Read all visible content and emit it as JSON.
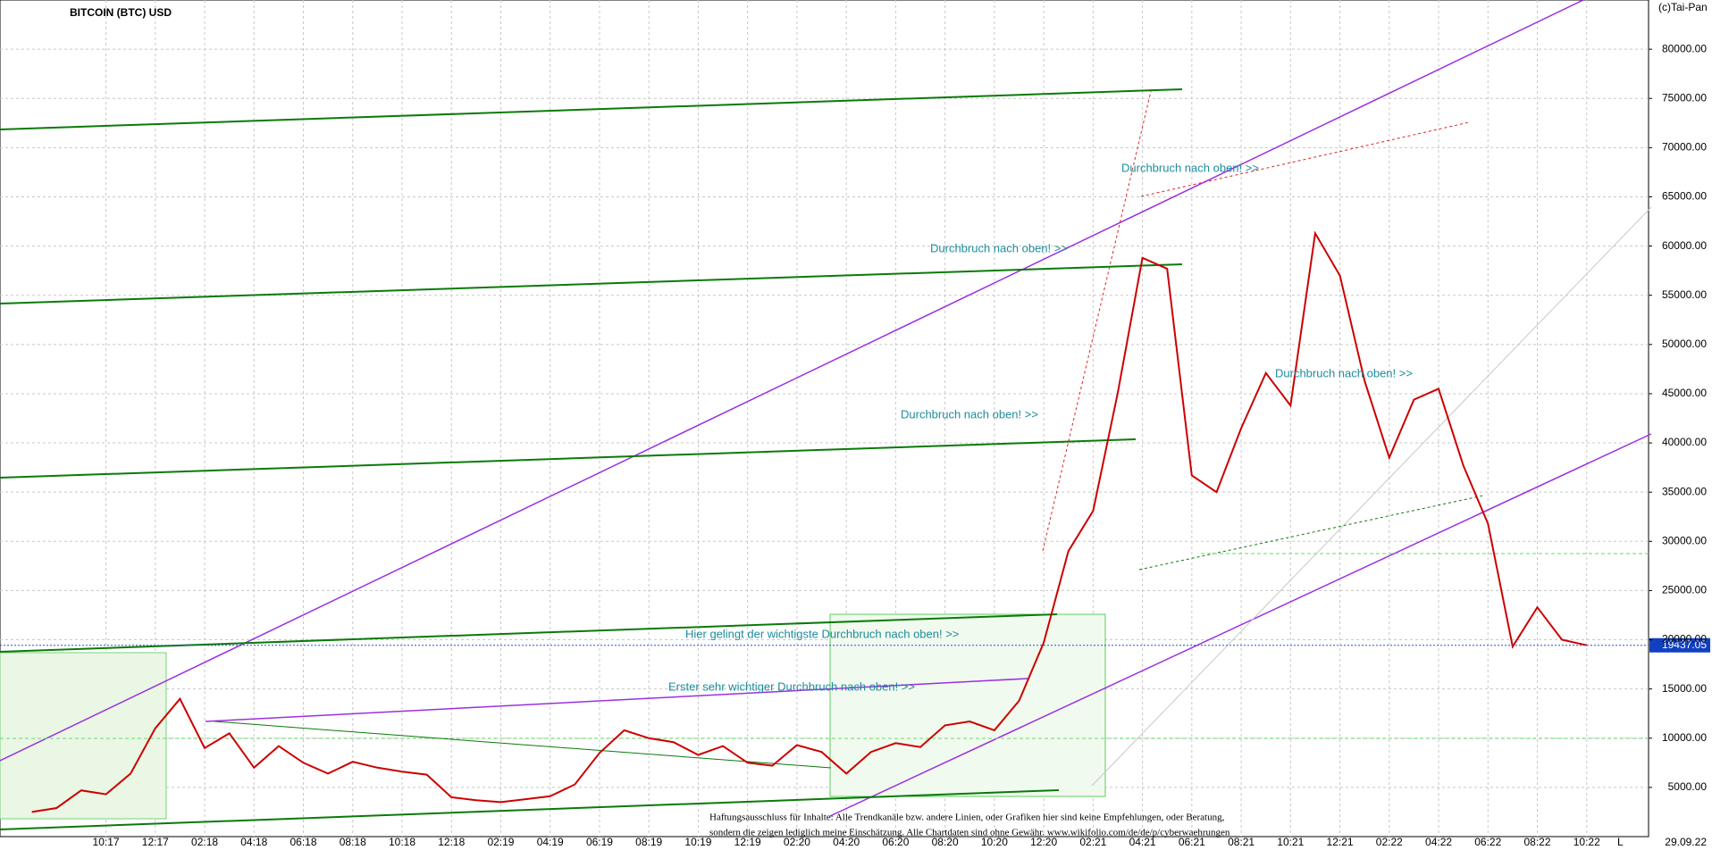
{
  "chart_data": {
    "type": "line",
    "title": "BITCOIN (BTC) USD",
    "copyright": "(c)Tai-Pan",
    "categories": [
      null,
      null,
      null,
      "10:17",
      null,
      "12:17",
      null,
      "02:18",
      null,
      "04:18",
      null,
      "06:18",
      null,
      "08:18",
      null,
      "10:18",
      null,
      "12:18",
      null,
      "02:19",
      null,
      "04:19",
      null,
      "06:19",
      null,
      "08:19",
      null,
      "10:19",
      null,
      "12:19",
      null,
      "02:20",
      null,
      "04:20",
      null,
      "06:20",
      null,
      "08:20",
      null,
      "10:20",
      null,
      "12:20",
      null,
      "02:21",
      null,
      "04:21",
      null,
      "06:21",
      null,
      "08:21",
      null,
      "10:21",
      null,
      "12:21",
      null,
      "02:22",
      null,
      "04:22",
      null,
      "06:22",
      null,
      "08:22",
      null,
      "10:22"
    ],
    "series": [
      {
        "name": "BITCOIN (BTC) USD",
        "color": "#cc0000",
        "values": [
          2500,
          2900,
          4700,
          4300,
          6400,
          11000,
          14000,
          9000,
          10500,
          7000,
          9200,
          7500,
          6400,
          7600,
          7000,
          6600,
          6300,
          4000,
          3700,
          3500,
          3800,
          4100,
          5300,
          8500,
          10800,
          10000,
          9600,
          8300,
          9200,
          7500,
          7200,
          9300,
          8600,
          6400,
          8600,
          9500,
          9100,
          11300,
          11700,
          10800,
          13800,
          19700,
          29000,
          33100,
          45100,
          58800,
          57700,
          36700,
          35000,
          41500,
          47100,
          43800,
          61300,
          57000,
          46300,
          38500,
          44400,
          45500,
          37700,
          31800,
          19300,
          23300,
          20000,
          19437.05
        ]
      }
    ],
    "ylim": [
      0,
      85000
    ],
    "yticks": [
      {
        "value": 5000,
        "label": "5000.00"
      },
      {
        "value": 10000,
        "label": "10000.00"
      },
      {
        "value": 15000,
        "label": "15000.00"
      },
      {
        "value": 20000,
        "label": "20000.00"
      },
      {
        "value": 25000,
        "label": "25000.00"
      },
      {
        "value": 30000,
        "label": "30000.00"
      },
      {
        "value": 35000,
        "label": "35000.00"
      },
      {
        "value": 40000,
        "label": "40000.00"
      },
      {
        "value": 45000,
        "label": "45000.00"
      },
      {
        "value": 50000,
        "label": "50000.00"
      },
      {
        "value": 55000,
        "label": "55000.00"
      },
      {
        "value": 60000,
        "label": "60000.00"
      },
      {
        "value": 65000,
        "label": "65000.00"
      },
      {
        "value": 70000,
        "label": "70000.00"
      },
      {
        "value": 75000,
        "label": "75000.00"
      },
      {
        "value": 80000,
        "label": "80000.00"
      }
    ],
    "grid": true,
    "annotations": [
      "Durchbruch nach oben! >>",
      "Durchbruch nach oben! >>",
      "Durchbruch nach oben! >>",
      "Durchbruch nach oben! >>",
      "Hier gelingt der wichtigste Durchbruch nach oben! >>",
      "Erster sehr wichtiger Durchbruch nach oben! >>"
    ],
    "disclaimer": [
      "Haftungsausschluss für Inhalte: Alle Trendkanäle bzw. andere Linien, oder Grafiken hier sind keine Empfehlungen, oder Beratung,",
      "sondern die zeigen lediglich meine Einschätzung. Alle Chartdaten sind ohne Gewähr. www.wikifolio.com/de/de/p/cyberwaehrungen"
    ],
    "date": "29.09.22",
    "scale_mode": "L"
  }
}
